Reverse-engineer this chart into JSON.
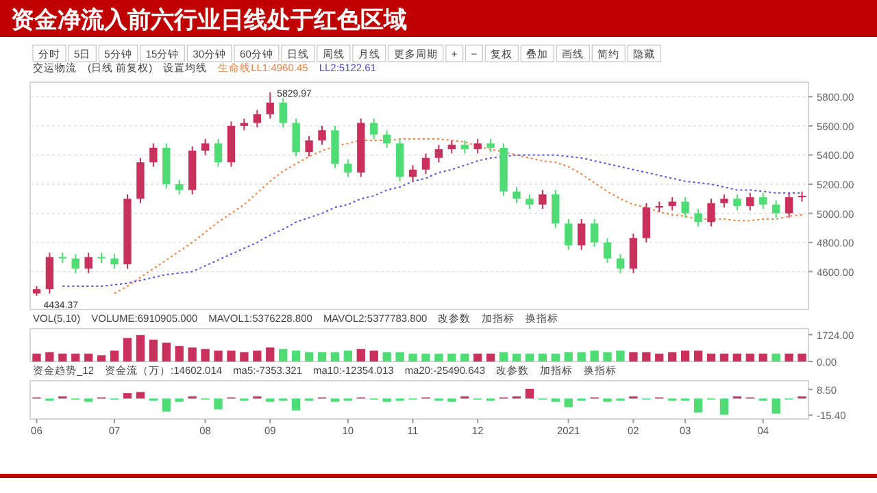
{
  "chart_data": [
    {
      "type": "other",
      "title": "资金净流入前六行业日线处于红色区域",
      "color": "#c00000",
      "annotations": [
        "分时",
        "5日",
        "5分钟",
        "15分钟",
        "30分钟",
        "60分钟",
        "日线",
        "周线",
        "月线",
        "更多周期",
        "+",
        "−",
        "复权",
        "叠加",
        "画线",
        "简约",
        "隐藏"
      ]
    },
    {
      "type": "candlestick",
      "categories": [
        null,
        null,
        null,
        null,
        null,
        null,
        null,
        null,
        null,
        null,
        null,
        null,
        null,
        null,
        null,
        null,
        null,
        null,
        null,
        null,
        null,
        null,
        null,
        null,
        null,
        null,
        null,
        null,
        null,
        null,
        null,
        null,
        null,
        null,
        null,
        null,
        null,
        null,
        null,
        null,
        null,
        null,
        null,
        null,
        null,
        null,
        null,
        null,
        null,
        null,
        null,
        null,
        null,
        null,
        null,
        null,
        null,
        null,
        null,
        null
      ],
      "ohlc": [
        [
          4450,
          4500,
          4434.37,
          4480
        ],
        [
          4480,
          4730,
          4450,
          4700
        ],
        [
          4700,
          4730,
          4660,
          4690
        ],
        [
          4690,
          4720,
          4590,
          4620
        ],
        [
          4620,
          4730,
          4590,
          4700
        ],
        [
          4700,
          4730,
          4660,
          4690
        ],
        [
          4690,
          4720,
          4620,
          4650
        ],
        [
          4650,
          5130,
          4620,
          5100
        ],
        [
          5100,
          5380,
          5070,
          5350
        ],
        [
          5350,
          5480,
          5320,
          5450
        ],
        [
          5450,
          5480,
          5170,
          5200
        ],
        [
          5200,
          5230,
          5130,
          5160
        ],
        [
          5160,
          5460,
          5130,
          5430
        ],
        [
          5430,
          5510,
          5400,
          5480
        ],
        [
          5480,
          5510,
          5320,
          5350
        ],
        [
          5350,
          5630,
          5320,
          5600
        ],
        [
          5600,
          5650,
          5570,
          5620
        ],
        [
          5620,
          5710,
          5590,
          5680
        ],
        [
          5680,
          5829.97,
          5650,
          5760
        ],
        [
          5760,
          5790,
          5590,
          5620
        ],
        [
          5620,
          5650,
          5390,
          5420
        ],
        [
          5420,
          5530,
          5390,
          5500
        ],
        [
          5500,
          5600,
          5470,
          5570
        ],
        [
          5570,
          5600,
          5310,
          5340
        ],
        [
          5340,
          5370,
          5250,
          5280
        ],
        [
          5280,
          5650,
          5250,
          5620
        ],
        [
          5620,
          5650,
          5510,
          5540
        ],
        [
          5540,
          5570,
          5450,
          5480
        ],
        [
          5480,
          5510,
          5220,
          5250
        ],
        [
          5250,
          5330,
          5220,
          5300
        ],
        [
          5300,
          5410,
          5270,
          5380
        ],
        [
          5380,
          5470,
          5350,
          5440
        ],
        [
          5440,
          5500,
          5410,
          5470
        ],
        [
          5470,
          5500,
          5410,
          5440
        ],
        [
          5440,
          5510,
          5410,
          5480
        ],
        [
          5480,
          5510,
          5420,
          5450
        ],
        [
          5450,
          5480,
          5120,
          5150
        ],
        [
          5150,
          5180,
          5070,
          5100
        ],
        [
          5100,
          5130,
          5030,
          5060
        ],
        [
          5060,
          5160,
          5030,
          5130
        ],
        [
          5130,
          5160,
          4900,
          4930
        ],
        [
          4930,
          4960,
          4750,
          4780
        ],
        [
          4780,
          4960,
          4750,
          4930
        ],
        [
          4930,
          4960,
          4770,
          4800
        ],
        [
          4800,
          4830,
          4660,
          4690
        ],
        [
          4690,
          4720,
          4590,
          4620
        ],
        [
          4620,
          4860,
          4590,
          4830
        ],
        [
          4830,
          5070,
          4800,
          5040
        ],
        [
          5040,
          5080,
          5010,
          5050
        ],
        [
          5050,
          5110,
          5020,
          5080
        ],
        [
          5080,
          5110,
          4970,
          5000
        ],
        [
          5000,
          5030,
          4910,
          4940
        ],
        [
          4940,
          5100,
          4910,
          5070
        ],
        [
          5070,
          5130,
          5040,
          5100
        ],
        [
          5100,
          5130,
          5020,
          5050
        ],
        [
          5050,
          5140,
          5020,
          5110
        ],
        [
          5110,
          5140,
          5030,
          5060
        ],
        [
          5060,
          5090,
          4970,
          5000
        ],
        [
          5000,
          5140,
          4970,
          5110
        ],
        [
          5110,
          5150,
          5080,
          5120
        ]
      ],
      "colors": [
        "#c9305c",
        "#c9305c",
        "#4fdc74",
        "#4fdc74",
        "#c9305c",
        "#4fdc74",
        "#4fdc74",
        "#c9305c",
        "#c9305c",
        "#c9305c",
        "#4fdc74",
        "#4fdc74",
        "#c9305c",
        "#c9305c",
        "#4fdc74",
        "#c9305c",
        "#c9305c",
        "#c9305c",
        "#c9305c",
        "#4fdc74",
        "#4fdc74",
        "#c9305c",
        "#c9305c",
        "#4fdc74",
        "#4fdc74",
        "#c9305c",
        "#4fdc74",
        "#4fdc74",
        "#4fdc74",
        "#c9305c",
        "#c9305c",
        "#c9305c",
        "#c9305c",
        "#4fdc74",
        "#c9305c",
        "#4fdc74",
        "#4fdc74",
        "#4fdc74",
        "#4fdc74",
        "#c9305c",
        "#4fdc74",
        "#4fdc74",
        "#c9305c",
        "#4fdc74",
        "#4fdc74",
        "#4fdc74",
        "#c9305c",
        "#c9305c",
        "#c9305c",
        "#c9305c",
        "#4fdc74",
        "#4fdc74",
        "#c9305c",
        "#c9305c",
        "#4fdc74",
        "#c9305c",
        "#4fdc74",
        "#4fdc74",
        "#c9305c",
        "#c9305c"
      ],
      "series": [
        {
          "name": "生命线LL1:4960.45",
          "type": "line",
          "line_style": "dotted",
          "color": "#f08040",
          "values": [
            null,
            null,
            null,
            null,
            null,
            null,
            4450,
            4500,
            4560,
            4620,
            4680,
            4740,
            4800,
            4870,
            4940,
            5000,
            5060,
            5140,
            5220,
            5290,
            5340,
            5390,
            5430,
            5460,
            5480,
            5500,
            5500,
            5500,
            5510,
            5510,
            5510,
            5510,
            5500,
            5490,
            5460,
            5440,
            5420,
            5400,
            5380,
            5360,
            5350,
            5320,
            5270,
            5210,
            5150,
            5100,
            5060,
            5040,
            5010,
            4990,
            4980,
            4960,
            4960,
            4960,
            4950,
            4950,
            4960,
            4960,
            4980,
            4990
          ]
        },
        {
          "name": "LL2:5122.61",
          "type": "line",
          "line_style": "dotted",
          "color": "#5050e0",
          "values": [
            null,
            null,
            4500,
            4500,
            4500,
            4500,
            4510,
            4520,
            4540,
            4560,
            4580,
            4590,
            4600,
            4640,
            4680,
            4720,
            4760,
            4800,
            4850,
            4890,
            4940,
            4970,
            5000,
            5040,
            5060,
            5100,
            5120,
            5160,
            5180,
            5220,
            5240,
            5280,
            5300,
            5330,
            5360,
            5380,
            5390,
            5400,
            5400,
            5400,
            5400,
            5390,
            5380,
            5360,
            5340,
            5320,
            5300,
            5280,
            5260,
            5240,
            5220,
            5210,
            5200,
            5180,
            5160,
            5160,
            5150,
            5140,
            5140,
            5140
          ]
        }
      ],
      "legend": "top left",
      "ylim": [
        4340,
        5900
      ],
      "yticks": [
        {
          "value": 4600,
          "label": "4600.00"
        },
        {
          "value": 4800,
          "label": "4800.00"
        },
        {
          "value": 5000,
          "label": "5000.00"
        },
        {
          "value": 5200,
          "label": "5200.00"
        },
        {
          "value": 5400,
          "label": "5400.00"
        },
        {
          "value": 5600,
          "label": "5600.00"
        },
        {
          "value": 5800,
          "label": "5800.00"
        }
      ],
      "tick_labels": "y",
      "grid": "y",
      "annotations": [
        "交运物流",
        "(日线 前复权)",
        "设置均线",
        "5829.97",
        "4434.37"
      ]
    },
    {
      "type": "bar",
      "categories": [
        null,
        null,
        null,
        null,
        null,
        null,
        null,
        null,
        null,
        null,
        null,
        null,
        null,
        null,
        null,
        null,
        null,
        null,
        null,
        null,
        null,
        null,
        null,
        null,
        null,
        null,
        null,
        null,
        null,
        null,
        null,
        null,
        null,
        null,
        null,
        null,
        null,
        null,
        null,
        null,
        null,
        null,
        null,
        null,
        null,
        null,
        null,
        null,
        null,
        null,
        null,
        null,
        null,
        null,
        null,
        null,
        null,
        null,
        null,
        null
      ],
      "values": [
        500,
        600,
        500,
        500,
        500,
        400,
        700,
        1500,
        1700,
        1400,
        1200,
        1000,
        900,
        800,
        700,
        700,
        600,
        700,
        900,
        800,
        700,
        600,
        600,
        600,
        700,
        800,
        700,
        600,
        600,
        500,
        500,
        500,
        500,
        500,
        500,
        500,
        600,
        500,
        500,
        500,
        500,
        600,
        600,
        700,
        600,
        700,
        600,
        600,
        500,
        600,
        700,
        700,
        500,
        500,
        500,
        500,
        500,
        500,
        500,
        500
      ],
      "colors": [
        "#c9305c",
        "#c9305c",
        "#c9305c",
        "#c9305c",
        "#c9305c",
        "#c9305c",
        "#c9305c",
        "#c9305c",
        "#c9305c",
        "#c9305c",
        "#c9305c",
        "#c9305c",
        "#c9305c",
        "#c9305c",
        "#c9305c",
        "#c9305c",
        "#c9305c",
        "#c9305c",
        "#c9305c",
        "#4fdc74",
        "#4fdc74",
        "#4fdc74",
        "#4fdc74",
        "#4fdc74",
        "#4fdc74",
        "#c9305c",
        "#c9305c",
        "#4fdc74",
        "#4fdc74",
        "#4fdc74",
        "#4fdc74",
        "#4fdc74",
        "#4fdc74",
        "#4fdc74",
        "#c9305c",
        "#c9305c",
        "#4fdc74",
        "#4fdc74",
        "#4fdc74",
        "#4fdc74",
        "#4fdc74",
        "#4fdc74",
        "#4fdc74",
        "#4fdc74",
        "#4fdc74",
        "#4fdc74",
        "#c9305c",
        "#c9305c",
        "#c9305c",
        "#c9305c",
        "#c9305c",
        "#c9305c",
        "#c9305c",
        "#c9305c",
        "#c9305c",
        "#c9305c",
        "#c9305c",
        "#4fdc74",
        "#c9305c",
        "#c9305c"
      ],
      "ylim": [
        0,
        2100
      ],
      "yticks": [
        {
          "value": 0,
          "label": "0.00"
        },
        {
          "value": 1724,
          "label": "1724.00"
        }
      ],
      "tick_labels": "y",
      "annotations": [
        "VOL(5,10)",
        "VOLUME:6910905.000",
        "MAVOL1:5376228.800",
        "MAVOL2:5377783.800",
        "改参数",
        "加指标",
        "换指标"
      ]
    },
    {
      "type": "bar",
      "categories": [
        "06",
        null,
        null,
        null,
        null,
        null,
        "07",
        null,
        null,
        null,
        null,
        null,
        null,
        "08",
        null,
        null,
        null,
        null,
        "09",
        null,
        null,
        null,
        null,
        null,
        "10",
        null,
        null,
        null,
        null,
        "11",
        null,
        null,
        null,
        null,
        "12",
        null,
        null,
        null,
        null,
        null,
        null,
        "2021",
        null,
        null,
        null,
        null,
        "02",
        null,
        null,
        null,
        "03",
        null,
        null,
        null,
        null,
        null,
        "04",
        null,
        null,
        null
      ],
      "values": [
        1,
        -2,
        2,
        -1,
        -3,
        1,
        -1,
        5,
        6,
        -2,
        -12,
        -3,
        2,
        -1,
        -10,
        1,
        -2,
        2,
        -3,
        -2,
        -11,
        -2,
        1,
        -3,
        -2,
        1,
        -1,
        -3,
        -2,
        -1,
        1,
        -2,
        -3,
        2,
        -1,
        -2,
        1,
        2,
        9,
        -1,
        -3,
        -8,
        -2,
        1,
        -3,
        -2,
        2,
        -1,
        1,
        -2,
        -2,
        -13,
        -1,
        -15,
        2,
        1,
        -2,
        -14,
        -1,
        2
      ],
      "colors": [
        "#c9305c",
        "#4fdc74",
        "#c9305c",
        "#4fdc74",
        "#4fdc74",
        "#c9305c",
        "#4fdc74",
        "#c9305c",
        "#c9305c",
        "#4fdc74",
        "#4fdc74",
        "#4fdc74",
        "#c9305c",
        "#4fdc74",
        "#4fdc74",
        "#c9305c",
        "#4fdc74",
        "#c9305c",
        "#4fdc74",
        "#4fdc74",
        "#4fdc74",
        "#4fdc74",
        "#c9305c",
        "#4fdc74",
        "#4fdc74",
        "#c9305c",
        "#4fdc74",
        "#4fdc74",
        "#4fdc74",
        "#4fdc74",
        "#c9305c",
        "#4fdc74",
        "#4fdc74",
        "#c9305c",
        "#4fdc74",
        "#4fdc74",
        "#c9305c",
        "#c9305c",
        "#c9305c",
        "#4fdc74",
        "#4fdc74",
        "#4fdc74",
        "#4fdc74",
        "#c9305c",
        "#4fdc74",
        "#4fdc74",
        "#c9305c",
        "#4fdc74",
        "#c9305c",
        "#4fdc74",
        "#4fdc74",
        "#4fdc74",
        "#4fdc74",
        "#4fdc74",
        "#c9305c",
        "#c9305c",
        "#4fdc74",
        "#4fdc74",
        "#4fdc74",
        "#c9305c"
      ],
      "ylim": [
        -19,
        16.5
      ],
      "yticks": [
        {
          "value": -15.4,
          "label": "-15.40"
        },
        {
          "value": 8.5,
          "label": "8.50"
        }
      ],
      "annotations": [
        "资金趋势_12",
        "资金流（万）:14602.014",
        "ma5:-7353.321",
        "ma10:-12354.013",
        "ma20:-25490.643",
        "改参数",
        "加指标",
        "换指标"
      ]
    }
  ]
}
